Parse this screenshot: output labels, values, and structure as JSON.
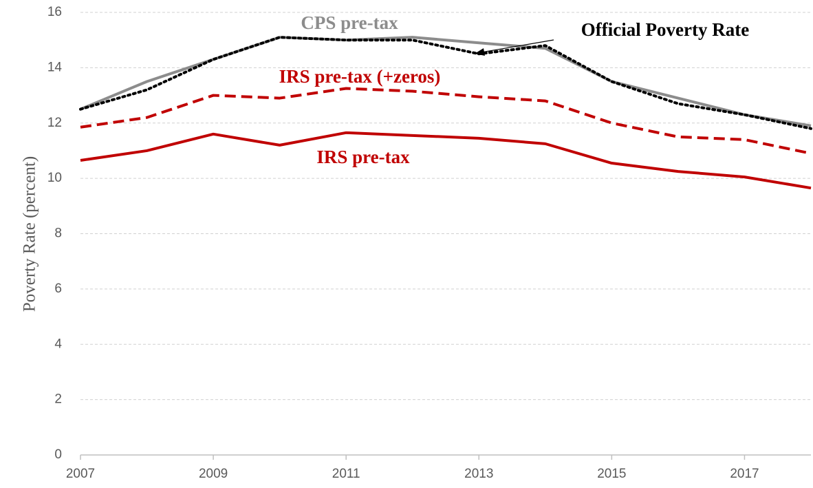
{
  "chart_data": {
    "type": "line",
    "y_label": "Poverty Rate (percent)",
    "x": [
      2007,
      2008,
      2009,
      2010,
      2011,
      2012,
      2013,
      2014,
      2015,
      2016,
      2017,
      2018
    ],
    "xlim": [
      2007,
      2018
    ],
    "xticks": [
      2007,
      2009,
      2011,
      2013,
      2015,
      2017
    ],
    "ylim": [
      0,
      16
    ],
    "yticks": [
      0,
      2,
      4,
      6,
      8,
      10,
      12,
      14,
      16
    ],
    "grid": true,
    "series": [
      {
        "name": "CPS pre-tax",
        "color": "#8c8c8c",
        "dash": "solid",
        "values": [
          12.5,
          13.5,
          14.3,
          15.1,
          15.0,
          15.1,
          14.9,
          14.7,
          13.5,
          12.9,
          12.3,
          11.9
        ]
      },
      {
        "name": "Official Poverty Rate",
        "color": "#000000",
        "dash": "dotted",
        "values": [
          12.5,
          13.2,
          14.3,
          15.1,
          15.0,
          15.0,
          14.5,
          14.8,
          13.5,
          12.7,
          12.3,
          11.8
        ]
      },
      {
        "name": "IRS pre-tax (+zeros)",
        "color": "#c00000",
        "dash": "dashed",
        "values": [
          11.85,
          12.2,
          13.0,
          12.9,
          13.25,
          13.15,
          12.95,
          12.8,
          12.0,
          11.5,
          11.4,
          10.9
        ]
      },
      {
        "name": "IRS pre-tax",
        "color": "#c00000",
        "dash": "solid",
        "values": [
          10.65,
          11.0,
          11.6,
          11.2,
          11.65,
          11.55,
          11.45,
          11.25,
          10.55,
          10.25,
          10.05,
          9.65
        ]
      }
    ]
  }
}
